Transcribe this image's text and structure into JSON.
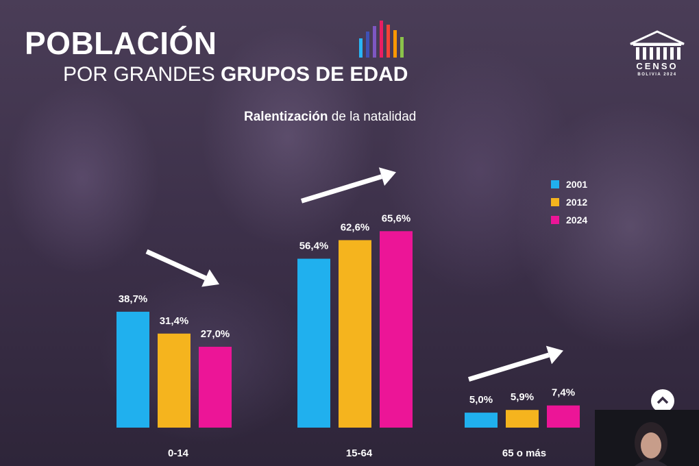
{
  "header": {
    "title_line1": "POBLACIÓN",
    "title_line2_light": "POR GRANDES ",
    "title_line2_bold": "GRUPOS DE EDAD",
    "subtitle_bold": "Ralentización",
    "subtitle_rest": " de la natalidad"
  },
  "logo": {
    "bar_colors": [
      "#29b6f6",
      "#3f51b5",
      "#7e57c2",
      "#e91e63",
      "#f44336",
      "#ff9800",
      "#8bc34a"
    ],
    "censo_word": "CENSO",
    "censo_sub": "BOLIVIA 2024"
  },
  "colors": {
    "s2001": "#20b0ee",
    "s2012": "#f5b41e",
    "s2024": "#ec1597",
    "text": "#ffffff"
  },
  "chart_data": {
    "type": "bar",
    "categories": [
      "0-14",
      "15-64",
      "65 o más"
    ],
    "series": [
      {
        "name": "2001",
        "values": [
          38.7,
          56.4,
          5.0
        ],
        "labels": [
          "38,7%",
          "56,4%",
          "5,0%"
        ]
      },
      {
        "name": "2012",
        "values": [
          31.4,
          62.6,
          5.9
        ],
        "labels": [
          "31,4%",
          "62,6%",
          "5,9%"
        ]
      },
      {
        "name": "2024",
        "values": [
          27.0,
          65.6,
          7.4
        ],
        "labels": [
          "27,0%",
          "65,6%",
          "7,4%"
        ]
      }
    ],
    "trend": [
      "down",
      "up",
      "up"
    ],
    "ylim": [
      0,
      70
    ],
    "grid": false,
    "legend_position": "right"
  }
}
